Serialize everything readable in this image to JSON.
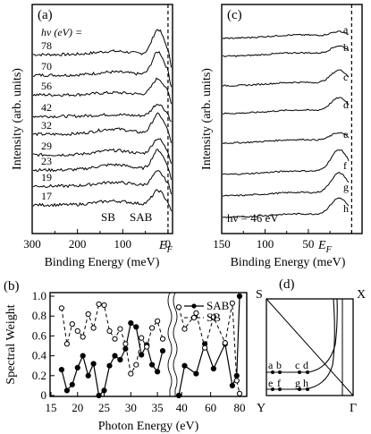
{
  "chart_data": [
    {
      "type": "line",
      "panel": "(a)",
      "ylabel": "Intensity (arb. units)",
      "xlabel": "Binding Energy (meV)",
      "xlim": [
        300,
        -10
      ],
      "xticks": [
        "300",
        "200",
        "100",
        "0"
      ],
      "fermi_label": "E",
      "fermi_sub": "F",
      "hv_label": "hν (eV) =",
      "series_labels": [
        "78",
        "70",
        "56",
        "42",
        "32",
        "29",
        "23",
        "19",
        "17"
      ],
      "annotations": [
        "SB",
        "SAB"
      ],
      "grid": false
    },
    {
      "type": "line",
      "panel": "(c)",
      "ylabel": "Intensity (arb. units)",
      "xlabel": "Binding Energy (meV)",
      "xlim": [
        150,
        -12
      ],
      "xticks": [
        "150",
        "100",
        "50"
      ],
      "fermi_label": "E",
      "fermi_sub": "F",
      "series_labels": [
        "a",
        "b",
        "c",
        "d",
        "e",
        "f",
        "g",
        "h"
      ],
      "annotation": "hν = 46 eV",
      "grid": false
    },
    {
      "type": "line",
      "panel": "(b)",
      "xlabel": "Photon Energy (eV)",
      "ylabel": "Spectral Weight",
      "xticks": [
        "15",
        "20",
        "25",
        "30",
        "35",
        "40",
        "60",
        "80"
      ],
      "yticks": [
        "0",
        "0.2",
        "0.4",
        "0.6",
        "0.8",
        "1.0"
      ],
      "ylim": [
        0,
        1.0
      ],
      "axis_break": "between 37 and 38 eV",
      "series": [
        {
          "name": "SAB",
          "marker": "filled-circle",
          "line": "solid",
          "x": [
            17,
            18,
            19,
            20,
            21,
            22,
            23,
            24,
            25,
            26,
            27,
            28,
            29,
            30,
            31,
            32,
            33,
            34,
            35,
            36,
            38,
            42,
            50,
            56,
            62,
            70,
            75,
            78,
            80
          ],
          "y": [
            0.26,
            0.05,
            0.11,
            0.28,
            0.4,
            0.2,
            0.32,
            0.0,
            0.05,
            0.3,
            0.4,
            0.36,
            0.47,
            0.73,
            0.69,
            0.41,
            0.51,
            0.31,
            0.24,
            0.45,
            0.0,
            0.3,
            0.22,
            0.52,
            0.27,
            0.52,
            0.1,
            0.2,
            1.0
          ]
        },
        {
          "name": "SB",
          "marker": "open-circle",
          "line": "dashed",
          "x": [
            17,
            18,
            19,
            20,
            21,
            22,
            23,
            24,
            25,
            26,
            27,
            28,
            29,
            30,
            31,
            32,
            33,
            34,
            35,
            36,
            38,
            42,
            50,
            56,
            62,
            70,
            75,
            78,
            80
          ],
          "y": [
            0.88,
            0.52,
            0.72,
            0.65,
            0.59,
            0.82,
            0.68,
            0.92,
            0.91,
            0.65,
            0.57,
            0.67,
            0.52,
            0.22,
            0.31,
            0.58,
            0.49,
            0.68,
            0.75,
            0.57,
            0.89,
            0.67,
            0.83,
            0.48,
            0.79,
            0.53,
            0.93,
            0.15,
            0.02
          ]
        }
      ]
    }
  ],
  "panel_d": {
    "label": "(d)",
    "corners": {
      "top_left": "S",
      "top_right": "X",
      "bottom_left": "Y",
      "bottom_right": "Γ"
    },
    "points_upper": [
      "a",
      "b",
      "c",
      "d"
    ],
    "points_lower": [
      "e",
      "f",
      "g",
      "h"
    ]
  }
}
